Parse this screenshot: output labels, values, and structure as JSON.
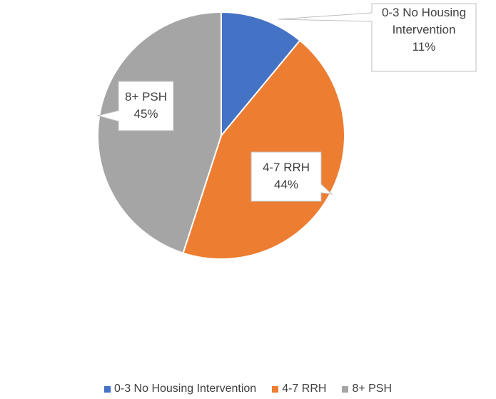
{
  "chart_data": {
    "type": "pie",
    "categories": [
      "0-3 No Housing Intervention",
      "4-7 RRH",
      "8+ PSH"
    ],
    "values": [
      11,
      44,
      45
    ],
    "value_labels": [
      "11%",
      "44%",
      "45%"
    ],
    "colors": [
      "#4472c4",
      "#ed7d31",
      "#a5a5a5"
    ],
    "legend": "bottom"
  }
}
